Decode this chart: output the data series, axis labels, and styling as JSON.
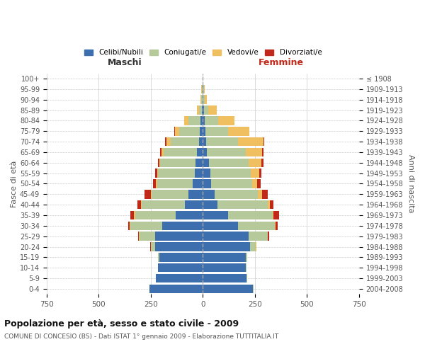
{
  "age_groups": [
    "0-4",
    "5-9",
    "10-14",
    "15-19",
    "20-24",
    "25-29",
    "30-34",
    "35-39",
    "40-44",
    "45-49",
    "50-54",
    "55-59",
    "60-64",
    "65-69",
    "70-74",
    "75-79",
    "80-84",
    "85-89",
    "90-94",
    "95-99",
    "100+"
  ],
  "birth_years": [
    "2004-2008",
    "1999-2003",
    "1994-1998",
    "1989-1993",
    "1984-1988",
    "1979-1983",
    "1974-1978",
    "1969-1973",
    "1964-1968",
    "1959-1963",
    "1954-1958",
    "1949-1953",
    "1944-1948",
    "1939-1943",
    "1934-1938",
    "1929-1933",
    "1924-1928",
    "1919-1923",
    "1914-1918",
    "1909-1913",
    "≤ 1908"
  ],
  "male": {
    "celibi": [
      255,
      225,
      215,
      210,
      230,
      230,
      195,
      130,
      85,
      70,
      50,
      40,
      35,
      30,
      20,
      15,
      10,
      5,
      3,
      2,
      0
    ],
    "coniugati": [
      2,
      2,
      2,
      5,
      20,
      75,
      155,
      195,
      210,
      175,
      170,
      175,
      170,
      160,
      135,
      100,
      60,
      15,
      5,
      3,
      0
    ],
    "vedovi": [
      0,
      0,
      0,
      0,
      1,
      2,
      2,
      5,
      2,
      5,
      5,
      5,
      5,
      10,
      20,
      20,
      20,
      10,
      5,
      2,
      0
    ],
    "divorziati": [
      0,
      0,
      0,
      0,
      2,
      5,
      8,
      18,
      18,
      30,
      15,
      10,
      5,
      5,
      5,
      2,
      0,
      0,
      0,
      0,
      0
    ]
  },
  "female": {
    "nubili": [
      240,
      210,
      205,
      205,
      225,
      220,
      170,
      120,
      70,
      55,
      40,
      35,
      30,
      20,
      15,
      12,
      8,
      5,
      3,
      2,
      0
    ],
    "coniugate": [
      2,
      2,
      3,
      8,
      30,
      90,
      175,
      215,
      240,
      210,
      195,
      195,
      190,
      185,
      155,
      110,
      65,
      20,
      5,
      2,
      0
    ],
    "vedove": [
      0,
      0,
      0,
      0,
      1,
      2,
      5,
      5,
      10,
      20,
      25,
      40,
      60,
      80,
      120,
      100,
      80,
      40,
      10,
      5,
      0
    ],
    "divorziate": [
      0,
      0,
      0,
      0,
      2,
      5,
      10,
      25,
      20,
      25,
      18,
      12,
      10,
      5,
      5,
      2,
      0,
      0,
      0,
      0,
      0
    ]
  },
  "colors": {
    "celibi": "#3d6faf",
    "coniugati": "#b5c99a",
    "vedovi": "#f0c060",
    "divorziati": "#c0281a"
  },
  "xlim": 750,
  "title": "Popolazione per età, sesso e stato civile - 2009",
  "subtitle": "COMUNE DI CONCESIO (BS) - Dati ISTAT 1° gennaio 2009 - Elaborazione TUTTITALIA.IT",
  "xlabel_left": "Maschi",
  "xlabel_right": "Femmine",
  "ylabel_left": "Fasce di età",
  "ylabel_right": "Anni di nascita",
  "bg_color": "#ffffff",
  "grid_color": "#cccccc",
  "bar_height": 0.85
}
